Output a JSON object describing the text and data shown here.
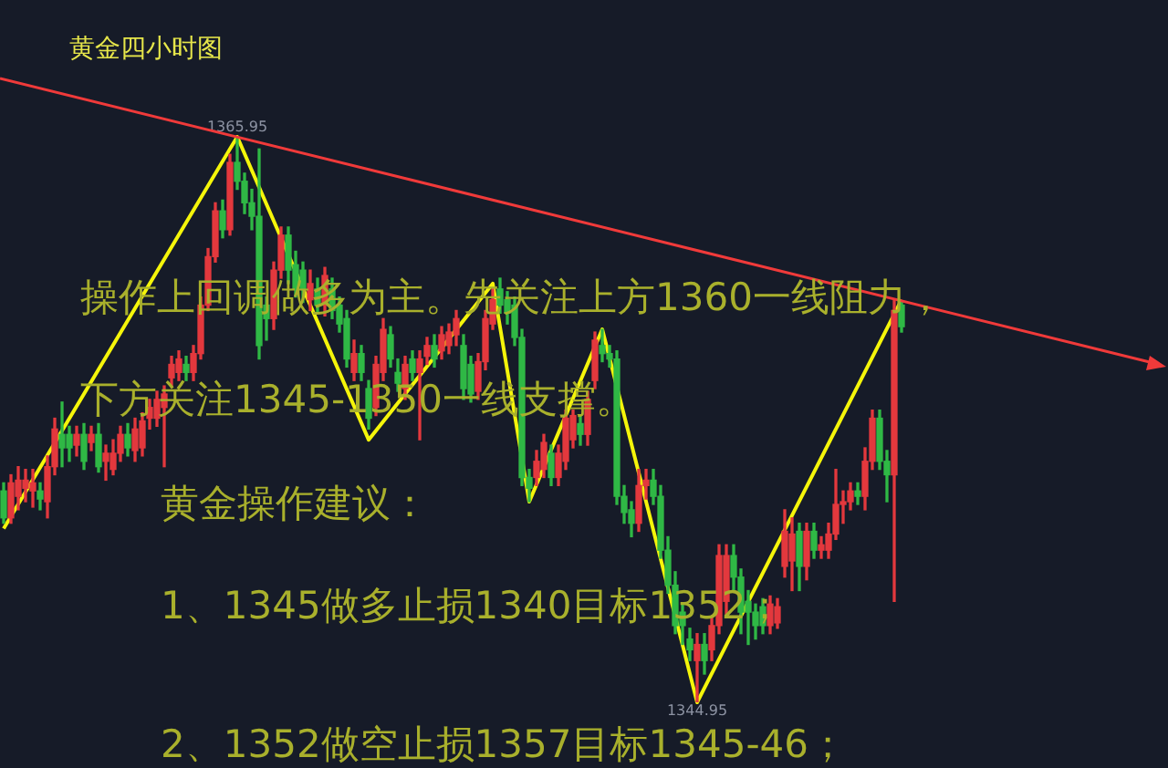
{
  "chart_data": {
    "type": "candlestick",
    "title": "黄金四小时图",
    "tick_labels": false,
    "legend": false,
    "categories": [
      null,
      null,
      null,
      null,
      null,
      null,
      null,
      null,
      null,
      null,
      null,
      null,
      null,
      null,
      null,
      null,
      null,
      null,
      null,
      null,
      null,
      null,
      null,
      null,
      null,
      null,
      null,
      null,
      null,
      null,
      null,
      null,
      null,
      null,
      null,
      null,
      null,
      null,
      null,
      null,
      null,
      null,
      null,
      null,
      null,
      null,
      null,
      null,
      null,
      null,
      null,
      null,
      null,
      null,
      null,
      null,
      null,
      null,
      null,
      null,
      null,
      null,
      null,
      null,
      null,
      null,
      null,
      null,
      null,
      null,
      null,
      null,
      null,
      null,
      null,
      null,
      null,
      null,
      null,
      null,
      null,
      null,
      null,
      null,
      null,
      null,
      null,
      null,
      null,
      null,
      null,
      null,
      null,
      null,
      null,
      null,
      null,
      null,
      null,
      null,
      null,
      null,
      null,
      null,
      null,
      null,
      null,
      null,
      null,
      null,
      null,
      null,
      null,
      null,
      null,
      null,
      null,
      null,
      null,
      null,
      null,
      null,
      null,
      null,
      null,
      null,
      null,
      null,
      null,
      null,
      null,
      null,
      null,
      null,
      null,
      null,
      null,
      null,
      null,
      null,
      null,
      null,
      null,
      null,
      null,
      null,
      null,
      null,
      null,
      null,
      null,
      null,
      null,
      null,
      null,
      null,
      null,
      null,
      null,
      null
    ],
    "series": [
      {
        "type": "candlestick",
        "colors": [
          "#2fb845",
          "#e3383d",
          "#e3383d",
          "#e3383d",
          "#e3383d",
          "#2fb845",
          "#e3383d",
          "#e3383d",
          "#2fb845",
          "#2fb845",
          "#e3383d",
          "#2fb845",
          "#e3383d",
          "#2fb845",
          "#e3383d",
          "#e3383d",
          "#e3383d",
          "#2fb845",
          "#e3383d",
          "#e3383d",
          "#e3383d",
          "#e3383d",
          "#e3383d",
          "#e3383d",
          "#e3383d",
          "#2fb845",
          "#e3383d",
          "#e3383d",
          "#e3383d",
          "#e3383d",
          "#2fb845",
          "#e3383d",
          "#2fb845",
          "#2fb845",
          "#2fb845",
          "#2fb845",
          "#2fb845",
          "#e3383d",
          "#e3383d",
          "#2fb845",
          "#2fb845",
          "#2fb845",
          "#e3383d",
          "#2fb845",
          "#e3383d",
          "#2fb845",
          "#2fb845",
          "#2fb845",
          "#e3383d",
          "#2fb845",
          "#2fb845",
          "#e3383d",
          "#e3383d",
          "#2fb845",
          "#2fb845",
          "#e3383d",
          "#2fb845",
          "#e3383d",
          "#e3383d",
          "#2fb845",
          "#e3383d",
          "#e3383d",
          "#e3383d",
          "#2fb845",
          "#2fb845",
          "#e3383d",
          "#e3383d",
          "#e3383d",
          "#2fb845",
          "#2fb845",
          "#2fb845",
          "#2fb845",
          "#2fb845",
          "#e3383d",
          "#e3383d",
          "#2fb845",
          "#e3383d",
          "#e3383d",
          "#e3383d",
          "#2fb845",
          "#e3383d",
          "#e3383d",
          "#2fb845",
          "#2fb845",
          "#2fb845",
          "#2fb845",
          "#2fb845",
          "#e3383d",
          "#e3383d",
          "#2fb845",
          "#2fb845",
          "#2fb845",
          "#2fb845",
          "#2fb845",
          "#2fb845",
          "#e3383d",
          "#2fb845",
          "#e3383d",
          "#e3383d",
          "#e3383d",
          "#2fb845",
          "#2fb845",
          "#2fb845",
          "#2fb845",
          "#2fb845",
          "#e3383d",
          "#e3383d",
          "#e3383d",
          "#e3383d",
          "#2fb845",
          "#e3383d",
          "#2fb845",
          "#e3383d",
          "#e3383d",
          "#e3383d",
          "#e3383d",
          "#e3383d",
          "#2fb845",
          "#e3383d",
          "#e3383d",
          "#2fb845",
          "#2fb845",
          "#e3383d",
          "#2fb845",
          null,
          null,
          null,
          null,
          null,
          null,
          null,
          null,
          null,
          null,
          null,
          null,
          null,
          null,
          null,
          null,
          null,
          null,
          null,
          null,
          null,
          null,
          null,
          null,
          null,
          null,
          null,
          null,
          null,
          null,
          null,
          null,
          null,
          null,
          null,
          null
        ],
        "ohlc": [
          [
            1352.8,
            1353.1,
            1351.6,
            1351.8
          ],
          [
            1351.8,
            1353.4,
            1351.6,
            1353.1
          ],
          [
            1352.6,
            1353.7,
            1352.1,
            1353.2
          ],
          [
            1352.9,
            1353.6,
            1352.4,
            1353.2
          ],
          [
            1352.8,
            1353.6,
            1352.2,
            1353.1
          ],
          [
            1352.8,
            1353.1,
            1352.1,
            1352.5
          ],
          [
            1352.4,
            1354.1,
            1351.8,
            1353.7
          ],
          [
            1353.7,
            1355.5,
            1353.4,
            1355.1
          ],
          [
            1354.9,
            1356.1,
            1353.7,
            1354.4
          ],
          [
            1354.9,
            1355.2,
            1353.9,
            1354.4
          ],
          [
            1354.5,
            1355.2,
            1354.1,
            1354.9
          ],
          [
            1354.9,
            1355.3,
            1353.6,
            1353.9
          ],
          [
            1354.6,
            1355.2,
            1354.3,
            1354.9
          ],
          [
            1354.9,
            1355.3,
            1353.5,
            1353.7
          ],
          [
            1353.9,
            1354.5,
            1353.2,
            1354.2
          ],
          [
            1353.6,
            1354.7,
            1353.4,
            1354.2
          ],
          [
            1354.2,
            1355.2,
            1353.9,
            1354.9
          ],
          [
            1354.9,
            1355.3,
            1354.1,
            1354.4
          ],
          [
            1354.3,
            1355.5,
            1353.9,
            1355.1
          ],
          [
            1354.4,
            1355.7,
            1354.1,
            1355.4
          ],
          [
            1355.5,
            1356.2,
            1355.1,
            1355.9
          ],
          [
            1355.5,
            1356.5,
            1355.2,
            1356.2
          ],
          [
            1355.9,
            1356.7,
            1353.7,
            1356.4
          ],
          [
            1357.0,
            1357.8,
            1356.7,
            1357.5
          ],
          [
            1357.2,
            1358.0,
            1356.9,
            1357.7
          ],
          [
            1357.5,
            1357.8,
            1356.9,
            1357.2
          ],
          [
            1357.2,
            1358.2,
            1356.9,
            1357.9
          ],
          [
            1357.9,
            1360.0,
            1357.7,
            1359.7
          ],
          [
            1359.7,
            1361.8,
            1359.5,
            1361.5
          ],
          [
            1361.5,
            1363.5,
            1361.3,
            1363.2
          ],
          [
            1363.2,
            1363.6,
            1362.2,
            1362.5
          ],
          [
            1362.5,
            1365.3,
            1362.3,
            1365.0
          ],
          [
            1365.0,
            1365.95,
            1364.0,
            1364.3
          ],
          [
            1364.3,
            1364.6,
            1363.1,
            1363.5
          ],
          [
            1363.5,
            1364.0,
            1362.5,
            1363.0
          ],
          [
            1363.0,
            1365.5,
            1357.7,
            1358.2
          ],
          [
            1359.7,
            1360.0,
            1358.4,
            1359.2
          ],
          [
            1359.2,
            1361.3,
            1358.8,
            1361.0
          ],
          [
            1361.0,
            1362.6,
            1360.7,
            1362.3
          ],
          [
            1362.3,
            1362.6,
            1360.5,
            1361.0
          ],
          [
            1361.2,
            1361.7,
            1360.0,
            1360.3
          ],
          [
            1361.0,
            1361.3,
            1359.8,
            1360.3
          ],
          [
            1359.9,
            1361.0,
            1359.5,
            1360.5
          ],
          [
            1360.3,
            1360.7,
            1359.4,
            1359.7
          ],
          [
            1359.7,
            1361.1,
            1359.3,
            1360.8
          ],
          [
            1360.3,
            1360.7,
            1359.2,
            1359.5
          ],
          [
            1359.7,
            1360.0,
            1358.7,
            1359.0
          ],
          [
            1359.2,
            1359.5,
            1357.4,
            1357.7
          ],
          [
            1357.2,
            1358.4,
            1356.9,
            1357.9
          ],
          [
            1357.9,
            1358.2,
            1356.9,
            1357.2
          ],
          [
            1356.6,
            1356.9,
            1355.1,
            1355.5
          ],
          [
            1355.9,
            1357.8,
            1355.6,
            1357.5
          ],
          [
            1357.2,
            1359.2,
            1356.9,
            1358.8
          ],
          [
            1358.6,
            1358.9,
            1357.4,
            1357.7
          ],
          [
            1357.2,
            1357.7,
            1356.5,
            1356.8
          ],
          [
            1356.6,
            1357.8,
            1356.2,
            1357.5
          ],
          [
            1357.7,
            1358.0,
            1356.9,
            1357.2
          ],
          [
            1357.2,
            1358.0,
            1354.7,
            1357.7
          ],
          [
            1357.8,
            1358.5,
            1357.5,
            1358.2
          ],
          [
            1358.2,
            1358.6,
            1357.4,
            1357.7
          ],
          [
            1358.0,
            1358.9,
            1357.7,
            1358.6
          ],
          [
            1358.2,
            1359.0,
            1357.9,
            1358.7
          ],
          [
            1358.6,
            1359.5,
            1358.2,
            1359.2
          ],
          [
            1358.2,
            1358.6,
            1356.2,
            1356.6
          ],
          [
            1357.5,
            1357.8,
            1356.1,
            1356.4
          ],
          [
            1356.5,
            1357.9,
            1356.2,
            1357.6
          ],
          [
            1357.6,
            1359.5,
            1357.3,
            1359.2
          ],
          [
            1359.0,
            1360.3,
            1358.8,
            1359.9
          ],
          [
            1360.3,
            1360.7,
            1359.4,
            1359.7
          ],
          [
            1359.9,
            1360.2,
            1359.0,
            1359.4
          ],
          [
            1359.7,
            1360.0,
            1358.2,
            1358.5
          ],
          [
            1358.5,
            1358.8,
            1353.0,
            1353.3
          ],
          [
            1353.3,
            1353.6,
            1352.4,
            1352.9
          ],
          [
            1353.3,
            1354.3,
            1353.0,
            1353.9
          ],
          [
            1353.6,
            1354.9,
            1353.3,
            1354.6
          ],
          [
            1354.2,
            1354.5,
            1353.0,
            1353.3
          ],
          [
            1353.3,
            1354.5,
            1353.0,
            1354.2
          ],
          [
            1353.9,
            1355.8,
            1353.6,
            1355.5
          ],
          [
            1354.7,
            1355.8,
            1354.4,
            1355.6
          ],
          [
            1355.3,
            1355.6,
            1354.5,
            1354.9
          ],
          [
            1354.9,
            1356.5,
            1354.5,
            1356.2
          ],
          [
            1356.9,
            1358.7,
            1356.6,
            1358.4
          ],
          [
            1358.2,
            1358.8,
            1357.6,
            1357.9
          ],
          [
            1357.9,
            1358.2,
            1357.4,
            1357.7
          ],
          [
            1357.7,
            1358.0,
            1352.3,
            1352.6
          ],
          [
            1352.6,
            1353.0,
            1351.6,
            1352.0
          ],
          [
            1352.1,
            1352.4,
            1351.1,
            1351.6
          ],
          [
            1351.6,
            1353.6,
            1351.3,
            1353.0
          ],
          [
            1353.0,
            1353.6,
            1352.5,
            1353.2
          ],
          [
            1353.2,
            1353.6,
            1352.3,
            1352.6
          ],
          [
            1352.6,
            1353.0,
            1350.3,
            1350.6
          ],
          [
            1350.6,
            1351.1,
            1349.0,
            1349.3
          ],
          [
            1349.3,
            1349.8,
            1347.5,
            1347.8
          ],
          [
            1348.3,
            1348.6,
            1347.1,
            1347.8
          ],
          [
            1347.3,
            1347.7,
            1346.5,
            1346.9
          ],
          [
            1346.5,
            1347.5,
            1344.95,
            1347.1
          ],
          [
            1347.1,
            1347.5,
            1346.0,
            1346.5
          ],
          [
            1346.9,
            1348.1,
            1346.5,
            1347.8
          ],
          [
            1347.8,
            1350.8,
            1347.5,
            1350.4
          ],
          [
            1348.7,
            1350.8,
            1348.1,
            1350.4
          ],
          [
            1350.4,
            1350.8,
            1349.1,
            1349.6
          ],
          [
            1349.6,
            1349.9,
            1347.5,
            1348.3
          ],
          [
            1348.7,
            1349.1,
            1347.1,
            1348.3
          ],
          [
            1348.3,
            1348.6,
            1347.3,
            1347.8
          ],
          [
            1348.5,
            1348.8,
            1347.5,
            1347.8
          ],
          [
            1347.8,
            1348.9,
            1347.5,
            1348.6
          ],
          [
            1347.9,
            1348.8,
            1347.7,
            1348.5
          ],
          [
            1350.0,
            1352.1,
            1349.6,
            1351.3
          ],
          [
            1350.2,
            1351.8,
            1349.1,
            1351.2
          ],
          [
            1351.3,
            1351.6,
            1349.1,
            1350.0
          ],
          [
            1350.0,
            1351.6,
            1349.5,
            1351.3
          ],
          [
            1351.3,
            1351.6,
            1350.3,
            1350.6
          ],
          [
            1350.6,
            1351.1,
            1350.3,
            1350.8
          ],
          [
            1350.6,
            1351.6,
            1350.3,
            1351.2
          ],
          [
            1351.2,
            1353.6,
            1351.0,
            1352.3
          ],
          [
            1352.3,
            1352.8,
            1351.6,
            1352.4
          ],
          [
            1352.4,
            1353.1,
            1352.1,
            1352.8
          ],
          [
            1352.8,
            1353.1,
            1352.3,
            1352.6
          ],
          [
            1352.6,
            1354.4,
            1352.1,
            1353.9
          ],
          [
            1353.9,
            1355.8,
            1353.6,
            1355.5
          ],
          [
            1355.5,
            1355.8,
            1353.6,
            1353.9
          ],
          [
            1353.9,
            1354.3,
            1352.4,
            1353.4
          ],
          [
            1353.4,
            1359.9,
            1348.7,
            1359.5
          ],
          [
            1359.7,
            1359.8,
            1358.7,
            1358.9
          ],
          null,
          null,
          null,
          null,
          null,
          null,
          null,
          null,
          null,
          null,
          null,
          null,
          null,
          null,
          null,
          null,
          null,
          null,
          null,
          null,
          null,
          null,
          null,
          null,
          null,
          null,
          null,
          null,
          null,
          null,
          null,
          null,
          null,
          null,
          null,
          null
        ]
      },
      {
        "type": "line",
        "color": "#f5f50a",
        "values": [
          1351.4,
          null,
          null,
          null,
          null,
          null,
          null,
          null,
          null,
          null,
          null,
          null,
          null,
          null,
          null,
          null,
          null,
          null,
          null,
          null,
          null,
          null,
          null,
          null,
          null,
          null,
          null,
          null,
          null,
          null,
          null,
          null,
          1365.95,
          null,
          null,
          null,
          null,
          null,
          null,
          null,
          null,
          null,
          null,
          null,
          null,
          null,
          null,
          null,
          null,
          null,
          1354.7,
          null,
          null,
          null,
          null,
          null,
          null,
          null,
          null,
          null,
          null,
          null,
          null,
          null,
          null,
          null,
          null,
          1360.5,
          null,
          null,
          null,
          null,
          1352.4,
          null,
          null,
          null,
          null,
          null,
          null,
          null,
          null,
          null,
          1358.8,
          null,
          null,
          null,
          null,
          null,
          null,
          null,
          null,
          null,
          null,
          null,
          null,
          1344.95,
          null,
          null,
          null,
          null,
          null,
          null,
          null,
          null,
          null,
          null,
          null,
          null,
          null,
          null,
          null,
          null,
          null,
          null,
          null,
          null,
          null,
          null,
          null,
          null,
          null,
          null,
          null,
          1359.9,
          null,
          null,
          null,
          null,
          null,
          null,
          null,
          null,
          null,
          null,
          null,
          null,
          null,
          null,
          null,
          null,
          null,
          null,
          null,
          null,
          null,
          null,
          null,
          null,
          null,
          null,
          null,
          null,
          null,
          null,
          null,
          null,
          null,
          null,
          null,
          null
        ]
      }
    ],
    "annotations": [
      {
        "text": "1365.95",
        "y": 1365.95
      },
      {
        "text": "1344.95",
        "y": 1344.95
      },
      "操作上回调做多为主。先关注上方1360一线阻力，",
      "下方关注1345-1350一线支撑。",
      "黄金操作建议：",
      "1、1345做多止损1340目标1352；",
      "2、1352做空止损1357目标1345-46；"
    ]
  }
}
